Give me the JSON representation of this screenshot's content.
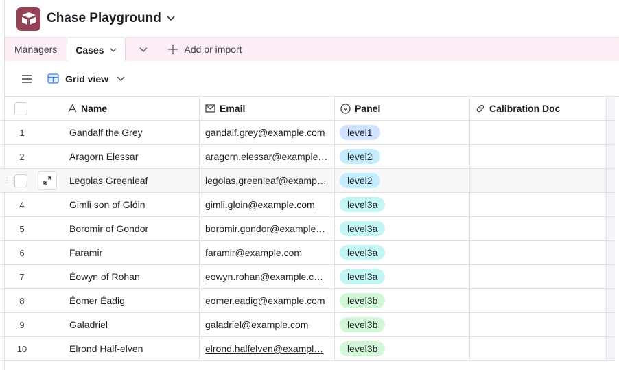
{
  "app": {
    "title": "Chase Playground"
  },
  "tabs": [
    {
      "label": "Managers"
    },
    {
      "label": "Cases",
      "active": true
    }
  ],
  "add_label": "Add or import",
  "view": {
    "label": "Grid view"
  },
  "columns": [
    {
      "label": "Name",
      "icon": "text-icon"
    },
    {
      "label": "Email",
      "icon": "mail-icon"
    },
    {
      "label": "Panel",
      "icon": "single-select-icon"
    },
    {
      "label": "Calibration Doc",
      "icon": "link-icon"
    }
  ],
  "panel_colors": {
    "level1": "#d1e2ff",
    "level2": "#c4ecff",
    "level3a": "#c2f5f3",
    "level3b": "#d1f7d6"
  },
  "rows": [
    {
      "num": "1",
      "name": "Gandalf the Grey",
      "email": "gandalf.grey@example.com",
      "panel": "level1"
    },
    {
      "num": "2",
      "name": "Aragorn Elessar",
      "email": "aragorn.elessar@example…",
      "panel": "level2"
    },
    {
      "num": "3",
      "name": "Legolas Greenleaf",
      "email": "legolas.greenleaf@examp…",
      "panel": "level2",
      "hovered": true
    },
    {
      "num": "4",
      "name": "Gimli son of Glóin",
      "email": "gimli.gloin@example.com",
      "panel": "level3a"
    },
    {
      "num": "5",
      "name": "Boromir of Gondor",
      "email": "boromir.gondor@example…",
      "panel": "level3a"
    },
    {
      "num": "6",
      "name": "Faramir",
      "email": "faramir@example.com",
      "panel": "level3a"
    },
    {
      "num": "7",
      "name": "Éowyn of Rohan",
      "email": "eowyn.rohan@example.c…",
      "panel": "level3a"
    },
    {
      "num": "8",
      "name": "Éomer Éadig",
      "email": "eomer.eadig@example.com",
      "panel": "level3b"
    },
    {
      "num": "9",
      "name": "Galadriel",
      "email": "galadriel@example.com",
      "panel": "level3b"
    },
    {
      "num": "10",
      "name": "Elrond Half-elven",
      "email": "elrond.halfelven@exampl…",
      "panel": "level3b"
    }
  ]
}
